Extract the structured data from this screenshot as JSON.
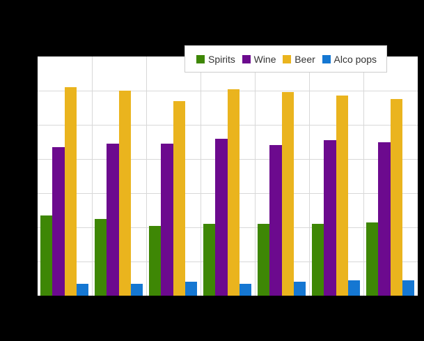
{
  "page": {
    "background": "#000000",
    "plot_background": "#ffffff"
  },
  "legend": {
    "text_color": "#333333",
    "border_color": "#cccccc",
    "background": "#ffffff"
  },
  "chart_data": {
    "type": "bar",
    "title": "",
    "xlabel": "",
    "ylabel": "",
    "categories": [
      "",
      "",
      "",
      "",
      "",
      "",
      ""
    ],
    "series": [
      {
        "name": "Spirits",
        "color": "#3e8705",
        "values": [
          0.47,
          0.45,
          0.41,
          0.42,
          0.42,
          0.42,
          0.43
        ]
      },
      {
        "name": "Wine",
        "color": "#6c0a8e",
        "values": [
          0.87,
          0.89,
          0.89,
          0.92,
          0.88,
          0.91,
          0.9
        ]
      },
      {
        "name": "Beer",
        "color": "#eab41e",
        "values": [
          1.22,
          1.2,
          1.14,
          1.21,
          1.19,
          1.17,
          1.15
        ]
      },
      {
        "name": "Alco pops",
        "color": "#1577d2",
        "values": [
          0.07,
          0.07,
          0.08,
          0.07,
          0.08,
          0.09,
          0.09
        ]
      }
    ],
    "ylim": [
      0,
      1.4
    ],
    "y_gridline_step": 0.2,
    "x_divisions": 7,
    "grid": true,
    "grid_color": "#d8d8d8",
    "legend_position": "top-right"
  }
}
